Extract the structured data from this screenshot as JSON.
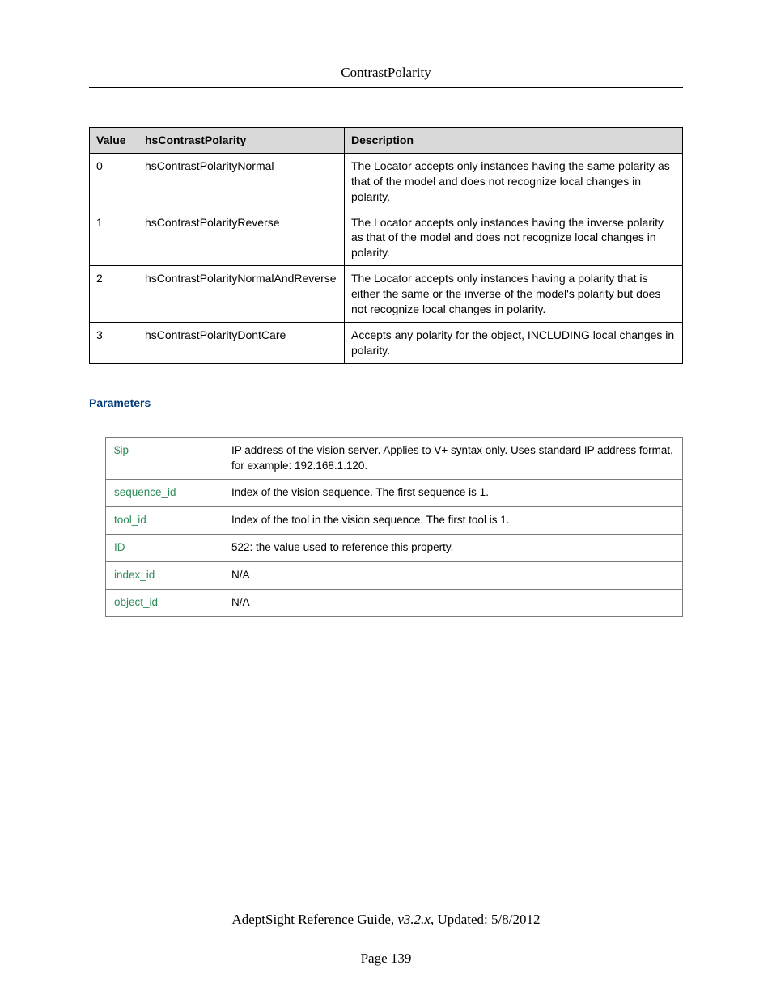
{
  "header": {
    "title": "ContrastPolarity"
  },
  "enum_table": {
    "columns": [
      "Value",
      "hsContrastPolarity",
      "Description"
    ],
    "rows": [
      {
        "value": "0",
        "name": "hsContrastPolarityNormal",
        "desc": "The Locator accepts only instances having the same polarity as that of the model and does not recognize local changes in polarity."
      },
      {
        "value": "1",
        "name": "hsContrastPolarityReverse",
        "desc": "The Locator accepts only instances having the inverse polarity as that of the model and does not recognize local changes in polarity."
      },
      {
        "value": "2",
        "name": "hsContrastPolarityNormalAndReverse",
        "desc": "The Locator accepts only instances having a polarity that is either the same or the inverse of the model's polarity but does not recognize local changes in polarity."
      },
      {
        "value": "3",
        "name": "hsContrastPolarityDontCare",
        "desc": "Accepts any polarity for the object, INCLUDING local changes in polarity."
      }
    ]
  },
  "params_heading": "Parameters",
  "params_table": {
    "rows": [
      {
        "label": "$ip",
        "desc": "IP address of the vision server. Applies to V+ syntax only. Uses standard IP address format, for example: 192.168.1.120."
      },
      {
        "label": "sequence_id",
        "desc": "Index of the vision sequence. The first sequence is 1."
      },
      {
        "label": "tool_id",
        "desc": "Index of the tool in the vision sequence. The first tool is 1."
      },
      {
        "label": "ID",
        "desc": "522: the value used to reference this property."
      },
      {
        "label": "index_id",
        "desc": "N/A"
      },
      {
        "label": "object_id",
        "desc": "N/A"
      }
    ]
  },
  "footer": {
    "doc_title": "AdeptSight Reference Guide",
    "version_prefix": ", ",
    "version": "v3.2.x",
    "updated_prefix": ", Updated: ",
    "updated": "5/8/2012",
    "page_label": "Page 139"
  }
}
